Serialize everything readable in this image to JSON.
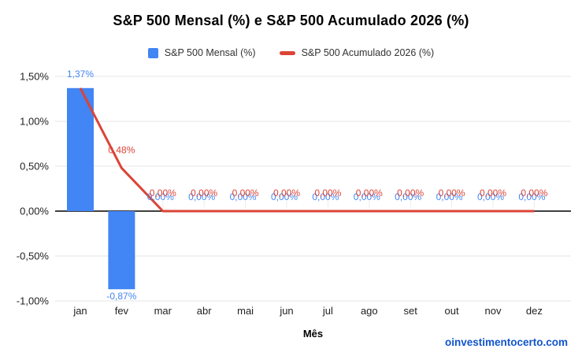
{
  "title": "S&P 500 Mensal (%) e S&P 500 Acumulado 2026 (%)",
  "legend": {
    "items": [
      {
        "label": "S&P 500 Mensal (%)",
        "marker": "square",
        "color": "#4285f4"
      },
      {
        "label": "S&P 500 Acumulado 2026 (%)",
        "marker": "dash",
        "color": "#db4437"
      }
    ]
  },
  "watermark": "oinvestimentocerto.com",
  "colors": {
    "bar": "#4285f4",
    "line": "#db4437",
    "grid": "#e6e6e6",
    "zero_line": "#000000",
    "axis_text": "#222222",
    "watermark": "#1155cc"
  },
  "chart_data": {
    "type": "bar",
    "subtype": "combo-bar-line",
    "title": "S&P 500 Mensal (%) e S&P 500 Acumulado 2026 (%)",
    "categories": [
      "jan",
      "fev",
      "mar",
      "abr",
      "mai",
      "jun",
      "jul",
      "ago",
      "set",
      "out",
      "nov",
      "dez"
    ],
    "series": [
      {
        "name": "S&P 500 Mensal (%)",
        "type": "bar",
        "color": "#4285f4",
        "values": [
          1.37,
          -0.87,
          0,
          0,
          0,
          0,
          0,
          0,
          0,
          0,
          0,
          0
        ],
        "data_labels": [
          "1,37%",
          "-0,87%",
          "0,00%",
          "0,00%",
          "0,00%",
          "0,00%",
          "0,00%",
          "0,00%",
          "0,00%",
          "0,00%",
          "0,00%",
          "0,00%"
        ]
      },
      {
        "name": "S&P 500 Acumulado 2026 (%)",
        "type": "line",
        "color": "#db4437",
        "values": [
          1.37,
          0.48,
          0,
          0,
          0,
          0,
          0,
          0,
          0,
          0,
          0,
          0
        ],
        "data_labels": [
          "1,37%",
          "0,48%",
          "0,00%",
          "0,00%",
          "0,00%",
          "0,00%",
          "0,00%",
          "0,00%",
          "0,00%",
          "0,00%",
          "0,00%",
          "0,00%"
        ]
      }
    ],
    "xlabel": "Mês",
    "ylabel": "",
    "ylim": [
      -1.0,
      1.5
    ],
    "y_ticks": [
      {
        "value": 1.5,
        "label": "1,50%"
      },
      {
        "value": 1.0,
        "label": "1,00%"
      },
      {
        "value": 0.5,
        "label": "0,50%"
      },
      {
        "value": 0.0,
        "label": "0,00%"
      },
      {
        "value": -0.5,
        "label": "-0,50%"
      },
      {
        "value": -1.0,
        "label": "-1,00%"
      }
    ],
    "grid": true,
    "legend_position": "top"
  }
}
